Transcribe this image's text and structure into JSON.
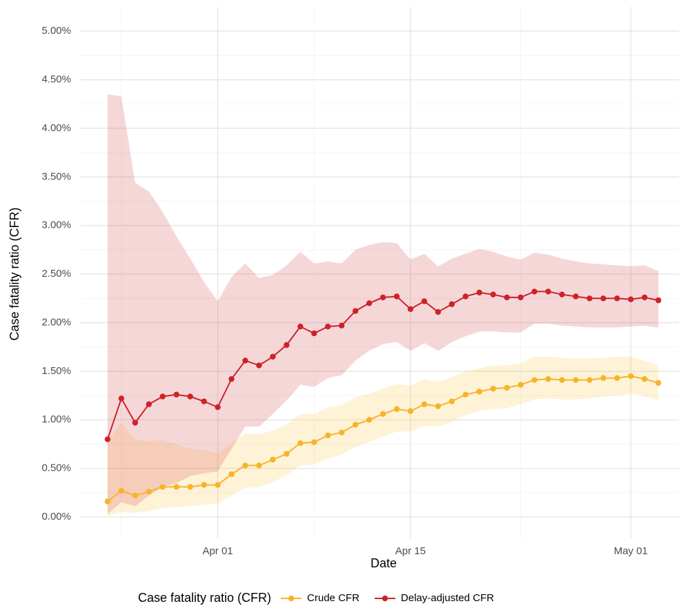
{
  "chart_data": {
    "type": "line",
    "x_label": "Date",
    "y_label": "Case fatality ratio (CFR)",
    "legend_title": "Case fatality ratio (CFR)",
    "legend": "bottom",
    "grid": true,
    "x": [
      "Mar 24",
      "Mar 25",
      "Mar 26",
      "Mar 27",
      "Mar 28",
      "Mar 29",
      "Mar 30",
      "Mar 31",
      "Apr 01",
      "Apr 02",
      "Apr 03",
      "Apr 04",
      "Apr 05",
      "Apr 06",
      "Apr 07",
      "Apr 08",
      "Apr 09",
      "Apr 10",
      "Apr 11",
      "Apr 12",
      "Apr 13",
      "Apr 14",
      "Apr 15",
      "Apr 16",
      "Apr 17",
      "Apr 18",
      "Apr 19",
      "Apr 20",
      "Apr 21",
      "Apr 22",
      "Apr 23",
      "Apr 24",
      "Apr 25",
      "Apr 26",
      "Apr 27",
      "Apr 28",
      "Apr 29",
      "Apr 30",
      "May 01",
      "May 02",
      "May 03"
    ],
    "xticks": [
      "Apr 01",
      "Apr 15",
      "May 01"
    ],
    "ylim": [
      -0.22,
      5.25
    ],
    "yticks": [
      {
        "value": 0,
        "label": "0.00%"
      },
      {
        "value": 0.5,
        "label": "0.50%"
      },
      {
        "value": 1,
        "label": "1.00%"
      },
      {
        "value": 1.5,
        "label": "1.50%"
      },
      {
        "value": 2,
        "label": "2.00%"
      },
      {
        "value": 2.5,
        "label": "2.50%"
      },
      {
        "value": 3,
        "label": "3.00%"
      },
      {
        "value": 3.5,
        "label": "3.50%"
      },
      {
        "value": 4,
        "label": "4.00%"
      },
      {
        "value": 4.5,
        "label": "4.50%"
      },
      {
        "value": 5,
        "label": "5.00%"
      }
    ],
    "series": [
      {
        "name": "Crude CFR",
        "color": "#f8b32a",
        "band_color": "#fcc94a",
        "values": [
          0.16,
          0.27,
          0.22,
          0.26,
          0.31,
          0.31,
          0.31,
          0.33,
          0.33,
          0.44,
          0.53,
          0.53,
          0.59,
          0.65,
          0.76,
          0.77,
          0.84,
          0.87,
          0.95,
          1.0,
          1.06,
          1.11,
          1.09,
          1.16,
          1.14,
          1.19,
          1.26,
          1.29,
          1.32,
          1.33,
          1.36,
          1.41,
          1.42,
          1.41,
          1.41,
          1.41,
          1.43,
          1.43,
          1.45,
          1.42,
          1.38
        ],
        "lower": [
          0.01,
          0.05,
          0.04,
          0.06,
          0.09,
          0.1,
          0.11,
          0.13,
          0.14,
          0.22,
          0.3,
          0.31,
          0.36,
          0.43,
          0.53,
          0.54,
          0.6,
          0.64,
          0.72,
          0.77,
          0.83,
          0.88,
          0.88,
          0.94,
          0.93,
          0.98,
          1.05,
          1.09,
          1.11,
          1.12,
          1.16,
          1.21,
          1.22,
          1.21,
          1.21,
          1.22,
          1.24,
          1.25,
          1.27,
          1.24,
          1.2
        ],
        "upper": [
          0.78,
          0.97,
          0.8,
          0.78,
          0.79,
          0.75,
          0.7,
          0.69,
          0.66,
          0.76,
          0.86,
          0.85,
          0.89,
          0.95,
          1.06,
          1.06,
          1.13,
          1.15,
          1.23,
          1.27,
          1.32,
          1.37,
          1.35,
          1.42,
          1.39,
          1.44,
          1.5,
          1.53,
          1.56,
          1.56,
          1.58,
          1.65,
          1.65,
          1.64,
          1.63,
          1.63,
          1.64,
          1.65,
          1.65,
          1.61,
          1.56
        ]
      },
      {
        "name": "Delay-adjusted CFR",
        "color": "#cc2329",
        "band_color": "#d4484f",
        "values": [
          0.8,
          1.22,
          0.97,
          1.16,
          1.24,
          1.26,
          1.24,
          1.19,
          1.13,
          1.42,
          1.61,
          1.56,
          1.65,
          1.77,
          1.96,
          1.89,
          1.96,
          1.97,
          2.12,
          2.2,
          2.26,
          2.27,
          2.14,
          2.22,
          2.11,
          2.19,
          2.27,
          2.31,
          2.29,
          2.26,
          2.26,
          2.32,
          2.32,
          2.29,
          2.27,
          2.25,
          2.25,
          2.25,
          2.24,
          2.26,
          2.23
        ],
        "lower": [
          0.03,
          0.15,
          0.11,
          0.22,
          0.31,
          0.35,
          0.42,
          0.45,
          0.47,
          0.7,
          0.93,
          0.93,
          1.06,
          1.2,
          1.36,
          1.34,
          1.43,
          1.46,
          1.61,
          1.71,
          1.78,
          1.8,
          1.71,
          1.79,
          1.71,
          1.8,
          1.86,
          1.91,
          1.91,
          1.9,
          1.9,
          1.99,
          1.99,
          1.97,
          1.96,
          1.95,
          1.95,
          1.95,
          1.96,
          1.97,
          1.95
        ],
        "upper": [
          4.35,
          4.33,
          3.44,
          3.35,
          3.14,
          2.89,
          2.66,
          2.42,
          2.22,
          2.47,
          2.61,
          2.46,
          2.49,
          2.59,
          2.73,
          2.61,
          2.63,
          2.61,
          2.75,
          2.8,
          2.83,
          2.82,
          2.65,
          2.71,
          2.58,
          2.66,
          2.71,
          2.76,
          2.73,
          2.68,
          2.65,
          2.72,
          2.7,
          2.66,
          2.63,
          2.61,
          2.6,
          2.59,
          2.58,
          2.59,
          2.53
        ]
      }
    ]
  }
}
